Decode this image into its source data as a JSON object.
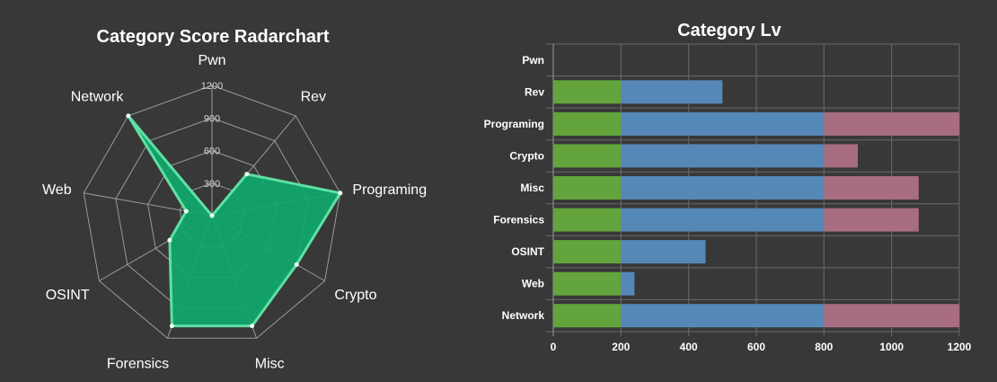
{
  "colors": {
    "background": "#383838",
    "radar_fill": "#0fa86d",
    "radar_stroke": "#5fe0a2",
    "grid": "#9a9a9a",
    "bar_green": "#63a53c",
    "bar_blue": "#5688b7",
    "bar_pink": "#a86d82"
  },
  "chart_data": [
    {
      "type": "radar",
      "title": "Category Score Radarchart",
      "axes": [
        "Pwn",
        "Rev",
        "Programing",
        "Crypto",
        "Misc",
        "Forensics",
        "OSINT",
        "Web",
        "Network"
      ],
      "values": [
        0,
        500,
        1200,
        900,
        1080,
        1080,
        450,
        240,
        1200
      ],
      "ticks": [
        300,
        600,
        900,
        1200
      ],
      "tick_labels": [
        "300",
        "600",
        "900",
        "1200"
      ],
      "rmax": 1200
    },
    {
      "type": "bar",
      "orientation": "horizontal",
      "stacked": true,
      "title": "Category Lv",
      "categories": [
        "Pwn",
        "Rev",
        "Programing",
        "Crypto",
        "Misc",
        "Forensics",
        "OSINT",
        "Web",
        "Network"
      ],
      "series": [
        {
          "values": [
            0,
            200,
            200,
            200,
            200,
            200,
            200,
            200,
            200
          ],
          "color": "#63a53c"
        },
        {
          "values": [
            0,
            300,
            600,
            600,
            600,
            600,
            250,
            40,
            600
          ],
          "color": "#5688b7"
        },
        {
          "values": [
            0,
            0,
            400,
            100,
            280,
            280,
            0,
            0,
            400
          ],
          "color": "#a86d82"
        }
      ],
      "xlim": [
        0,
        1200
      ],
      "xticks": [
        0,
        200,
        400,
        600,
        800,
        1000,
        1200
      ],
      "xtick_labels": [
        "0",
        "200",
        "400",
        "600",
        "800",
        "1000",
        "1200"
      ],
      "grid": true
    }
  ]
}
